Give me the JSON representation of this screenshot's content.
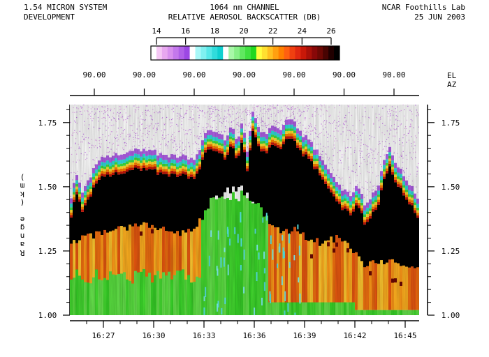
{
  "header": {
    "system_line1": "1.54 MICRON SYSTEM",
    "system_line2": "DEVELOPMENT",
    "channel": "1064 nm CHANNEL",
    "quantity": "RELATIVE AEROSOL BACKSCATTER (DB)",
    "lab": "NCAR Foothills Lab",
    "date": "25 JUN 2003"
  },
  "chart_data": {
    "type": "heatmap",
    "title": "RELATIVE AEROSOL BACKSCATTER (DB)",
    "subtitle": "1064 nm CHANNEL",
    "ylabel": "Range (km)",
    "ylim": [
      1.0,
      1.82
    ],
    "y_ticks": [
      "1.00",
      "1.25",
      "1.50",
      "1.75"
    ],
    "x_ticks": [
      "16:27",
      "16:30",
      "16:33",
      "16:36",
      "16:39",
      "16:42",
      "16:45"
    ],
    "xlim": [
      "16:25:00",
      "16:45:50"
    ],
    "top_axis": {
      "labels": [
        "EL",
        "AZ"
      ],
      "elevation_ticks": [
        "90.00",
        "90.00",
        "90.00",
        "90.00",
        "90.00",
        "90.00",
        "90.00"
      ]
    },
    "colorbar": {
      "ticks": [
        "14",
        "16",
        "18",
        "20",
        "22",
        "24",
        "26"
      ],
      "range": [
        14,
        26
      ],
      "colors": [
        "#ffffff",
        "#f5c8f5",
        "#e8a8f0",
        "#d890ee",
        "#c478ec",
        "#b060e8",
        "#9c48e4",
        "#ffffff",
        "#a8f8f8",
        "#80f0f0",
        "#58e8e8",
        "#30dcdc",
        "#10d0d0",
        "#ffffff",
        "#a8f8a8",
        "#88f088",
        "#60e860",
        "#40e040",
        "#20d820",
        "#ffff40",
        "#ffe030",
        "#ffc020",
        "#ffa010",
        "#ff8000",
        "#ff6010",
        "#f04010",
        "#e02810",
        "#c81808",
        "#a81008",
        "#880808",
        "#6c0804",
        "#480402",
        "#200000",
        "#000000"
      ]
    },
    "heatmap_description": {
      "layers": [
        {
          "name": "sparse aloft",
          "color": "magenta",
          "range_km": [
            1.56,
            1.82
          ]
        },
        {
          "name": "aerosol top gradient",
          "color": "cyan-green-orange",
          "range_km": [
            1.45,
            1.68
          ]
        },
        {
          "name": "strong layer",
          "color": "black",
          "range_km": [
            1.3,
            1.55
          ]
        },
        {
          "name": "lower mixed layer",
          "color": "orange",
          "range_km": [
            1.15,
            1.35
          ]
        },
        {
          "name": "near surface",
          "color": "green",
          "range_km": [
            1.0,
            1.2
          ]
        }
      ],
      "plume_time": "16:33-16:37"
    },
    "grid": false
  }
}
